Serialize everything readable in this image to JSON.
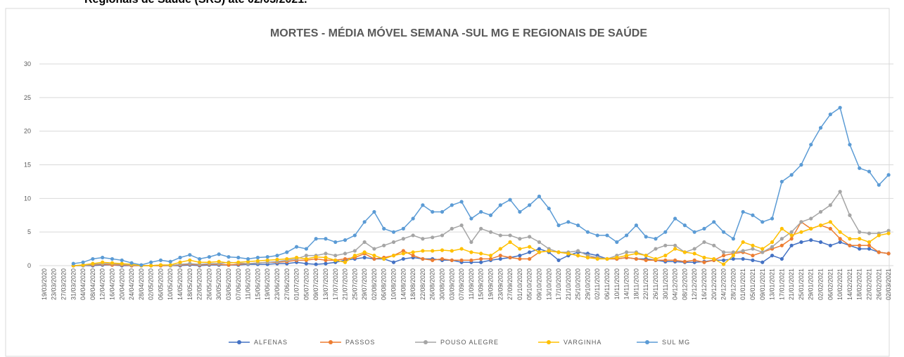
{
  "heading": "Regionais de Saúde (SRS) até 02/03/2021.",
  "chart_data": {
    "type": "line",
    "title": "MORTES - MÉDIA MÓVEL SEMANA -SUL MG E REGIONAIS DE SAÚDE",
    "categories": [
      "19/03/2020",
      "23/03/2020",
      "27/03/2020",
      "31/03/2020",
      "04/04/2020",
      "08/04/2020",
      "12/04/2020",
      "16/04/2020",
      "20/04/2020",
      "24/04/2020",
      "28/04/2020",
      "02/05/2020",
      "06/05/2020",
      "10/05/2020",
      "14/05/2020",
      "18/05/2020",
      "22/05/2020",
      "26/05/2020",
      "30/05/2020",
      "03/06/2020",
      "07/06/2020",
      "11/06/2020",
      "15/06/2020",
      "19/06/2020",
      "23/06/2020",
      "27/06/2020",
      "01/07/2020",
      "05/07/2020",
      "09/07/2020",
      "13/07/2020",
      "17/07/2020",
      "21/07/2020",
      "25/07/2020",
      "29/07/2020",
      "02/08/2020",
      "06/08/2020",
      "10/08/2020",
      "14/08/2020",
      "18/08/2020",
      "22/08/2020",
      "26/08/2020",
      "30/08/2020",
      "03/09/2020",
      "07/09/2020",
      "11/09/2020",
      "15/09/2020",
      "19/09/2020",
      "23/09/2020",
      "27/09/2020",
      "01/10/2020",
      "05/10/2020",
      "09/10/2020",
      "13/10/2020",
      "17/10/2020",
      "21/10/2020",
      "25/10/2020",
      "29/10/2020",
      "02/11/2020",
      "06/11/2020",
      "10/11/2020",
      "14/11/2020",
      "18/11/2020",
      "22/11/2020",
      "26/11/2020",
      "30/11/2020",
      "04/12/2020",
      "08/12/2020",
      "12/12/2020",
      "16/12/2020",
      "20/12/2020",
      "24/12/2020",
      "28/12/2020",
      "01/01/2021",
      "05/01/2021",
      "09/01/2021",
      "13/01/2021",
      "17/01/2021",
      "21/01/2021",
      "25/01/2021",
      "29/01/2021",
      "02/02/2021",
      "06/02/2021",
      "10/02/2021",
      "14/02/2021",
      "18/02/2021",
      "22/02/2021",
      "26/02/2021",
      "02/03/2021"
    ],
    "series": [
      {
        "name": "ALFENAS",
        "color": "#4472c4",
        "values": [
          null,
          null,
          null,
          0,
          0,
          0,
          0.1,
          0.1,
          0,
          0,
          0,
          0,
          0,
          0,
          0,
          0.1,
          0,
          0.1,
          0.1,
          0.1,
          0.1,
          0.2,
          0.2,
          0.2,
          0.3,
          0.3,
          0.5,
          0.3,
          0.2,
          0.3,
          0.5,
          0.8,
          1.0,
          1.2,
          1.0,
          1.0,
          0.5,
          1.0,
          1.2,
          1.0,
          1.0,
          0.8,
          0.8,
          0.5,
          0.5,
          0.5,
          0.8,
          1.0,
          1.2,
          1.5,
          2.0,
          2.5,
          2.0,
          0.8,
          1.5,
          2.0,
          1.8,
          1.5,
          1.0,
          1.0,
          1.2,
          1.0,
          1.0,
          0.8,
          0.6,
          0.6,
          0.5,
          0.5,
          0.6,
          0.8,
          0.8,
          1.0,
          1.0,
          0.8,
          0.5,
          1.5,
          1.0,
          3.0,
          3.5,
          3.8,
          3.5,
          3.0,
          3.5,
          3.0,
          2.5,
          2.5,
          2.0,
          1.8
        ]
      },
      {
        "name": "PASSOS",
        "color": "#ed7d31",
        "values": [
          null,
          null,
          null,
          0,
          0,
          0.1,
          0.2,
          0.1,
          0.1,
          0,
          0,
          0,
          0,
          0,
          0.1,
          0.2,
          0.1,
          0.2,
          0.2,
          0.1,
          0.2,
          0.3,
          0.4,
          0.5,
          0.5,
          0.6,
          0.8,
          0.8,
          1.0,
          0.8,
          0.8,
          1.0,
          1.2,
          1.8,
          1.0,
          1.2,
          1.5,
          2.2,
          1.5,
          1.0,
          0.8,
          1.0,
          0.8,
          0.8,
          0.8,
          1.0,
          1.0,
          1.5,
          1.2,
          1.0,
          1.0,
          2.0,
          2.2,
          2.0,
          1.8,
          1.5,
          1.2,
          1.2,
          1.0,
          1.0,
          1.2,
          1.0,
          0.8,
          0.8,
          0.8,
          0.8,
          0.6,
          0.8,
          0.5,
          0.8,
          1.5,
          1.8,
          2.0,
          1.5,
          2.0,
          2.5,
          3.0,
          4.0,
          6.5,
          5.5,
          6.0,
          5.5,
          4.0,
          3.0,
          3.0,
          3.0,
          2.0,
          1.8
        ]
      },
      {
        "name": "POUSO ALEGRE",
        "color": "#a5a5a5",
        "values": [
          null,
          null,
          null,
          0,
          0,
          0.2,
          0.3,
          0.3,
          0.2,
          0.1,
          0,
          0,
          0.1,
          0,
          0.2,
          0.3,
          0.2,
          0.3,
          0.3,
          0.5,
          0.4,
          0.3,
          0.4,
          0.5,
          0.6,
          0.8,
          1.0,
          1.5,
          1.5,
          1.8,
          1.5,
          1.8,
          2.2,
          3.5,
          2.5,
          3.0,
          3.5,
          4.0,
          4.5,
          4.0,
          4.2,
          4.5,
          5.5,
          6.0,
          3.5,
          5.5,
          5.0,
          4.5,
          4.5,
          4.0,
          4.3,
          3.5,
          2.5,
          2.0,
          2.0,
          2.2,
          1.5,
          1.2,
          1.0,
          1.5,
          2.0,
          2.0,
          1.5,
          2.5,
          3.0,
          3.0,
          2.0,
          2.5,
          3.5,
          3.0,
          2.0,
          2.0,
          2.2,
          2.5,
          2.0,
          2.8,
          4.0,
          5.0,
          6.5,
          7.0,
          8.0,
          9.0,
          11.0,
          7.5,
          5.0,
          4.8,
          4.8,
          5.2
        ]
      },
      {
        "name": "VARGINHA",
        "color": "#ffc000",
        "values": [
          null,
          null,
          null,
          0,
          0.1,
          0.3,
          0.5,
          0.4,
          0.3,
          0.2,
          0,
          0,
          0.1,
          0.1,
          0.5,
          0.8,
          0.5,
          0.5,
          0.6,
          0.4,
          0.5,
          0.6,
          0.7,
          0.8,
          0.9,
          1.0,
          1.2,
          1.0,
          1.3,
          1.2,
          0.8,
          0.5,
          1.5,
          2.0,
          1.5,
          1.0,
          1.5,
          1.8,
          2.0,
          2.2,
          2.2,
          2.3,
          2.2,
          2.5,
          2.0,
          1.8,
          1.5,
          2.5,
          3.5,
          2.5,
          2.8,
          2.0,
          2.2,
          2.0,
          1.8,
          1.5,
          1.2,
          1.0,
          1.0,
          1.2,
          1.5,
          1.8,
          1.5,
          1.0,
          1.5,
          2.5,
          2.0,
          1.8,
          1.2,
          1.0,
          0.2,
          1.5,
          3.5,
          3.0,
          2.5,
          3.5,
          5.5,
          4.5,
          5.0,
          5.5,
          6.0,
          6.5,
          5.0,
          4.0,
          4.0,
          3.5,
          4.5,
          4.8
        ]
      },
      {
        "name": "SUL MG",
        "color": "#5b9bd5",
        "values": [
          null,
          null,
          null,
          0.3,
          0.5,
          1.0,
          1.2,
          1.0,
          0.8,
          0.4,
          0.1,
          0.5,
          0.8,
          0.6,
          1.2,
          1.6,
          1.0,
          1.3,
          1.7,
          1.3,
          1.2,
          1.0,
          1.2,
          1.3,
          1.5,
          2.0,
          2.8,
          2.5,
          4.0,
          4.0,
          3.5,
          3.8,
          4.5,
          6.5,
          8.0,
          5.5,
          5.0,
          5.5,
          7.0,
          9.0,
          8.0,
          8.0,
          9.0,
          9.5,
          7.0,
          8.0,
          7.5,
          9.0,
          9.8,
          8.0,
          9.0,
          10.3,
          8.5,
          6.0,
          6.5,
          6.0,
          5.0,
          4.5,
          4.5,
          3.5,
          4.5,
          6.0,
          4.3,
          4.0,
          5.0,
          7.0,
          6.0,
          5.0,
          5.5,
          6.5,
          5.0,
          4.0,
          8.0,
          7.5,
          6.5,
          7.0,
          12.5,
          13.5,
          15.0,
          18.0,
          20.5,
          22.5,
          23.5,
          18.0,
          14.5,
          14.0,
          12.0,
          13.5
        ]
      }
    ],
    "ylim": [
      0,
      30
    ],
    "yticks": [
      0,
      5,
      10,
      15,
      20,
      25,
      30
    ],
    "grid": true,
    "legend": "bottom"
  }
}
